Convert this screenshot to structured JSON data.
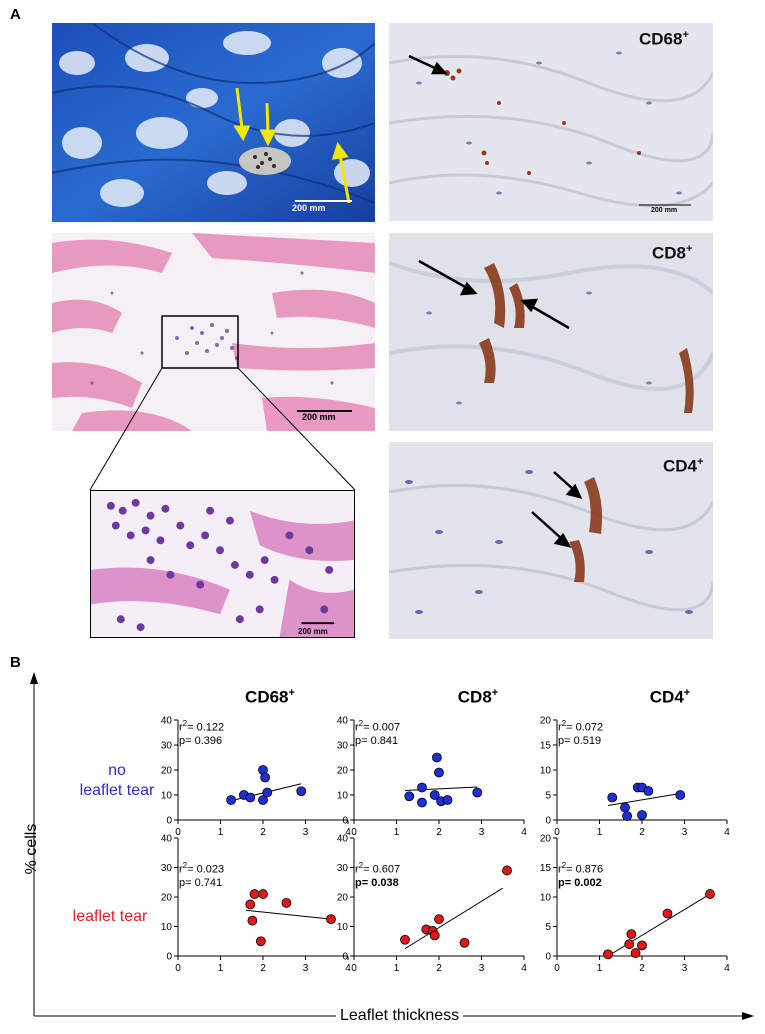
{
  "panel_a": {
    "letter": "A",
    "trichrome": {
      "scale_label": "200 mm"
    },
    "he_stain": {
      "scale_label": "200 mm"
    },
    "he_zoom": {
      "scale_label": "200 mm"
    },
    "cd68": {
      "label": "CD68",
      "sup": "+",
      "scale_label": "200 mm"
    },
    "cd8": {
      "label": "CD8",
      "sup": "+"
    },
    "cd4": {
      "label": "CD4",
      "sup": "+"
    }
  },
  "panel_b": {
    "letter": "B",
    "columns": [
      {
        "label": "CD68",
        "sup": "+"
      },
      {
        "label": "CD8",
        "sup": "+"
      },
      {
        "label": "CD4",
        "sup": "+"
      }
    ],
    "row_labels": [
      {
        "line1": "no",
        "line2": "leaflet tear",
        "color": "#2b2bd6"
      },
      {
        "line1": "leaflet tear",
        "line2": "",
        "color": "#e02020"
      }
    ],
    "y_axis_title": "% cells",
    "x_axis_title": "Leaflet thickness",
    "stats": [
      {
        "r_prefix": "r",
        "r_sup": "2",
        "r_value": "= 0.122",
        "p": "p= 0.396",
        "p_bold": false
      },
      {
        "r_prefix": "r",
        "r_sup": "2",
        "r_value": "= 0.007",
        "p": "p= 0.841",
        "p_bold": false
      },
      {
        "r_prefix": "r",
        "r_sup": "2",
        "r_value": "= 0.072",
        "p": "p= 0.519",
        "p_bold": false
      },
      {
        "r_prefix": "r",
        "r_sup": "2",
        "r_value": "= 0.023",
        "p": "p= 0.741",
        "p_bold": false
      },
      {
        "r_prefix": "r",
        "r_sup": "2",
        "r_value": "= 0.607",
        "p": "p= 0.038",
        "p_bold": true
      },
      {
        "r_prefix": "r",
        "r_sup": "2",
        "r_value": "= 0.876",
        "p": "p= 0.002",
        "p_bold": true
      }
    ]
  },
  "chart_data": [
    {
      "type": "scatter",
      "title": "CD68+",
      "group": "no leaflet tear",
      "color": "#1f2fd6",
      "xlim": [
        0,
        4
      ],
      "ylim": [
        0,
        40
      ],
      "xticks": [
        0,
        1,
        2,
        3,
        4
      ],
      "yticks": [
        0,
        10,
        20,
        30,
        40
      ],
      "points": [
        [
          1.25,
          8
        ],
        [
          1.55,
          10
        ],
        [
          1.7,
          9
        ],
        [
          2.0,
          20
        ],
        [
          2.05,
          17
        ],
        [
          2.0,
          8
        ],
        [
          2.1,
          11
        ],
        [
          2.9,
          11.5
        ]
      ],
      "fit": [
        [
          1.2,
          7.5
        ],
        [
          2.9,
          14.5
        ]
      ]
    },
    {
      "type": "scatter",
      "title": "CD8+",
      "group": "no leaflet tear",
      "color": "#1f2fd6",
      "xlim": [
        0,
        4
      ],
      "ylim": [
        0,
        40
      ],
      "xticks": [
        0,
        1,
        2,
        3,
        4
      ],
      "yticks": [
        0,
        10,
        20,
        30,
        40
      ],
      "points": [
        [
          1.3,
          9.5
        ],
        [
          1.6,
          13
        ],
        [
          1.6,
          7
        ],
        [
          1.9,
          10
        ],
        [
          1.95,
          25
        ],
        [
          2.0,
          19
        ],
        [
          2.05,
          7.5
        ],
        [
          2.2,
          8
        ],
        [
          2.9,
          11
        ]
      ],
      "fit": [
        [
          1.2,
          11.8
        ],
        [
          2.9,
          13.2
        ]
      ]
    },
    {
      "type": "scatter",
      "title": "CD4+",
      "group": "no leaflet tear",
      "color": "#1f2fd6",
      "xlim": [
        0,
        4
      ],
      "ylim": [
        0,
        20
      ],
      "xticks": [
        0,
        1,
        2,
        3,
        4
      ],
      "yticks": [
        0,
        5,
        10,
        15,
        20
      ],
      "points": [
        [
          1.3,
          4.5
        ],
        [
          1.6,
          2.5
        ],
        [
          1.65,
          0.8
        ],
        [
          1.9,
          6.5
        ],
        [
          2.0,
          6.5
        ],
        [
          2.0,
          1
        ],
        [
          2.15,
          5.8
        ],
        [
          2.9,
          5
        ]
      ],
      "fit": [
        [
          1.2,
          2.9
        ],
        [
          2.9,
          5.3
        ]
      ]
    },
    {
      "type": "scatter",
      "title": "CD68+",
      "group": "leaflet tear",
      "color": "#e01818",
      "xlim": [
        0,
        4
      ],
      "ylim": [
        0,
        40
      ],
      "xticks": [
        0,
        1,
        2,
        3,
        4
      ],
      "yticks": [
        0,
        10,
        20,
        30,
        40
      ],
      "points": [
        [
          1.7,
          17.5
        ],
        [
          1.75,
          12
        ],
        [
          1.8,
          21
        ],
        [
          2.0,
          21
        ],
        [
          1.95,
          5
        ],
        [
          2.55,
          18
        ],
        [
          3.6,
          12.5
        ]
      ],
      "fit": [
        [
          1.6,
          15.5
        ],
        [
          3.6,
          12.5
        ]
      ]
    },
    {
      "type": "scatter",
      "title": "CD8+",
      "group": "leaflet tear",
      "color": "#e01818",
      "xlim": [
        0,
        4
      ],
      "ylim": [
        0,
        40
      ],
      "xticks": [
        0,
        1,
        2,
        3,
        4
      ],
      "yticks": [
        0,
        10,
        20,
        30,
        40
      ],
      "points": [
        [
          1.2,
          5.5
        ],
        [
          1.7,
          9
        ],
        [
          1.85,
          8.5
        ],
        [
          1.9,
          7
        ],
        [
          2.0,
          12.5
        ],
        [
          2.6,
          4.5
        ],
        [
          3.6,
          29
        ]
      ],
      "fit": [
        [
          1.2,
          2.5
        ],
        [
          3.5,
          23
        ]
      ]
    },
    {
      "type": "scatter",
      "title": "CD4+",
      "group": "leaflet tear",
      "color": "#e01818",
      "xlim": [
        0,
        4
      ],
      "ylim": [
        0,
        20
      ],
      "xticks": [
        0,
        1,
        2,
        3,
        4
      ],
      "yticks": [
        0,
        5,
        10,
        15,
        20
      ],
      "points": [
        [
          1.2,
          0.3
        ],
        [
          1.7,
          2
        ],
        [
          1.75,
          3.7
        ],
        [
          1.85,
          0.5
        ],
        [
          2.0,
          1.8
        ],
        [
          2.6,
          7.2
        ],
        [
          3.6,
          10.5
        ]
      ],
      "fit": [
        [
          1.2,
          0
        ],
        [
          3.6,
          10.5
        ]
      ]
    }
  ]
}
